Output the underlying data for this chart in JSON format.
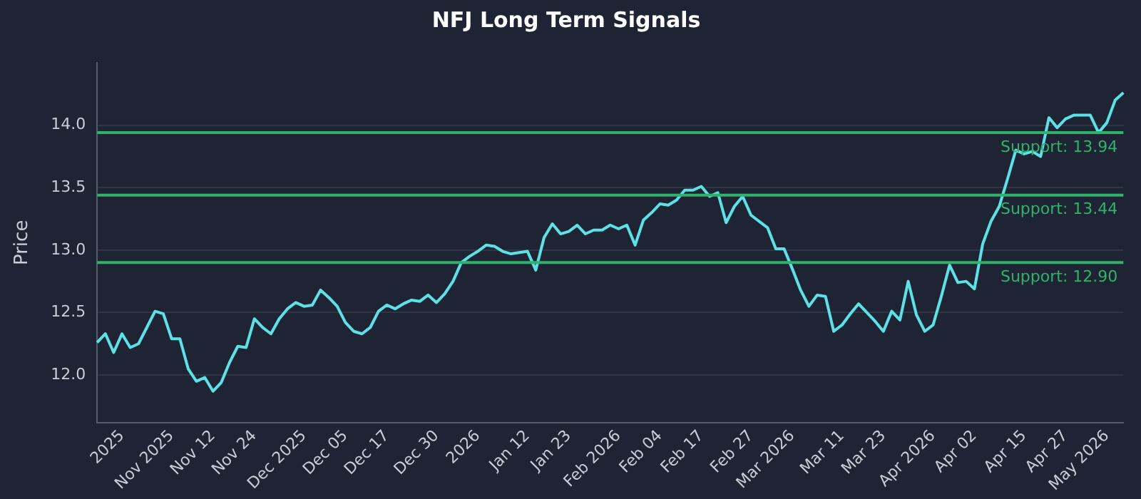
{
  "chart_data": {
    "type": "line",
    "title": "NFJ Long Term Signals",
    "ylabel": "Price",
    "categories": [
      null,
      null,
      null,
      "2025",
      null,
      null,
      null,
      null,
      null,
      "Nov 2025",
      null,
      null,
      null,
      null,
      "Nov 12",
      null,
      null,
      null,
      null,
      "Nov 24",
      null,
      null,
      null,
      null,
      null,
      "Dec 2025",
      null,
      null,
      null,
      null,
      "Dec 05",
      null,
      null,
      null,
      null,
      "Dec 17",
      null,
      null,
      null,
      null,
      null,
      "Dec 30",
      null,
      null,
      null,
      null,
      "2026",
      null,
      null,
      null,
      null,
      null,
      "Jan 12",
      null,
      null,
      null,
      null,
      "Jan 23",
      null,
      null,
      null,
      null,
      null,
      "Feb 2026",
      null,
      null,
      null,
      null,
      "Feb 04",
      null,
      null,
      null,
      null,
      "Feb 17",
      null,
      null,
      null,
      null,
      null,
      "Feb 27",
      null,
      null,
      null,
      null,
      "Mar 2026",
      null,
      null,
      null,
      null,
      null,
      "Mar 11",
      null,
      null,
      null,
      null,
      "Mar 23",
      null,
      null,
      null,
      null,
      null,
      "Apr 2026",
      null,
      null,
      null,
      null,
      "Apr 02",
      null,
      null,
      null,
      null,
      null,
      "Apr 15",
      null,
      null,
      null,
      null,
      "Apr 27",
      null,
      null,
      null,
      null,
      "May 2026",
      null,
      null
    ],
    "series": [
      {
        "color": "#5ce1e6",
        "values": [
          12.26,
          12.33,
          12.18,
          12.33,
          12.22,
          12.25,
          12.38,
          12.51,
          12.49,
          12.29,
          12.29,
          12.05,
          11.95,
          11.98,
          11.87,
          11.94,
          12.1,
          12.23,
          12.22,
          12.45,
          12.38,
          12.33,
          12.45,
          12.53,
          12.58,
          12.55,
          12.56,
          12.68,
          12.62,
          12.55,
          12.42,
          12.35,
          12.33,
          12.38,
          12.51,
          12.56,
          12.53,
          12.57,
          12.6,
          12.59,
          12.64,
          12.58,
          12.65,
          12.75,
          12.9,
          12.95,
          12.99,
          13.04,
          13.03,
          12.99,
          12.97,
          12.98,
          12.99,
          12.84,
          13.1,
          13.21,
          13.13,
          13.15,
          13.2,
          13.13,
          13.16,
          13.16,
          13.2,
          13.17,
          13.2,
          13.04,
          13.24,
          13.3,
          13.37,
          13.36,
          13.4,
          13.48,
          13.48,
          13.51,
          13.43,
          13.46,
          13.22,
          13.35,
          13.43,
          13.28,
          13.23,
          13.18,
          13.01,
          13.01,
          12.85,
          12.68,
          12.55,
          12.64,
          12.63,
          12.35,
          12.4,
          12.49,
          12.57,
          12.5,
          12.43,
          12.35,
          12.51,
          12.44,
          12.75,
          12.48,
          12.35,
          12.4,
          12.63,
          12.88,
          12.74,
          12.75,
          12.69,
          13.05,
          13.23,
          13.35,
          13.57,
          13.8,
          13.77,
          13.79,
          13.75,
          14.06,
          13.98,
          14.05,
          14.08,
          14.08,
          14.08,
          13.94,
          14.02,
          14.2,
          14.26
        ]
      }
    ],
    "ylim": [
      11.62,
      14.5
    ],
    "yticks": [
      {
        "value": 12,
        "label": "12.0"
      },
      {
        "value": 12.5,
        "label": "12.5"
      },
      {
        "value": 13,
        "label": "13.0"
      },
      {
        "value": 13.5,
        "label": "13.5"
      },
      {
        "value": 14,
        "label": "14.0"
      }
    ],
    "ref_lines": [
      {
        "axis": "y",
        "value": 13.94,
        "label": "Support: 13.94",
        "color": "#2fb36a"
      },
      {
        "axis": "y",
        "value": 13.44,
        "label": "Support: 13.44",
        "color": "#2fb36a"
      },
      {
        "axis": "y",
        "value": 12.9,
        "label": "Support: 12.90",
        "color": "#2fb36a"
      }
    ],
    "grid": "y",
    "legend": false,
    "marker": "none",
    "line_style": "solid"
  }
}
